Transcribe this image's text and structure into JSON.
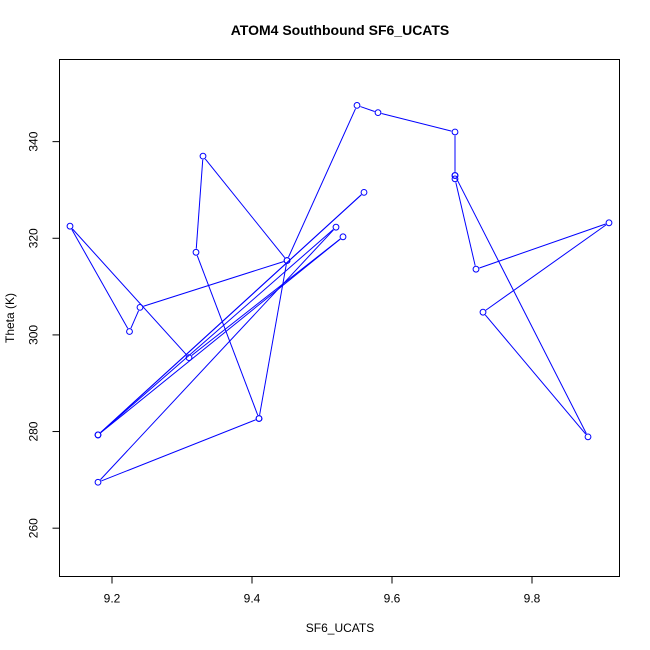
{
  "chart_data": {
    "type": "line",
    "title": "ATOM4 Southbound SF6_UCATS",
    "xlabel": "SF6_UCATS",
    "ylabel": "Theta (K)",
    "xlim": [
      9.125,
      9.925
    ],
    "ylim": [
      250,
      357
    ],
    "xticks": [
      {
        "value": 9.2,
        "label": "9.2"
      },
      {
        "value": 9.4,
        "label": "9.4"
      },
      {
        "value": 9.6,
        "label": "9.6"
      },
      {
        "value": 9.8,
        "label": "9.8"
      }
    ],
    "yticks": [
      {
        "value": 260,
        "label": "260"
      },
      {
        "value": 280,
        "label": "280"
      },
      {
        "value": 300,
        "label": "300"
      },
      {
        "value": 320,
        "label": "320"
      },
      {
        "value": 340,
        "label": "340"
      }
    ],
    "series": [
      {
        "color": "#0000ff",
        "marker": "open-circle",
        "points": [
          {
            "x": 9.41,
            "y": 282.7
          },
          {
            "x": 9.18,
            "y": 269.5
          },
          {
            "x": 9.52,
            "y": 322.3
          },
          {
            "x": 9.18,
            "y": 279.3
          },
          {
            "x": 9.56,
            "y": 329.5
          },
          {
            "x": 9.18,
            "y": 279.3
          },
          {
            "x": 9.53,
            "y": 320.3
          },
          {
            "x": 9.31,
            "y": 295.3
          },
          {
            "x": 9.14,
            "y": 322.5
          },
          {
            "x": 9.225,
            "y": 300.7
          },
          {
            "x": 9.24,
            "y": 305.7
          },
          {
            "x": 9.45,
            "y": 315.4
          },
          {
            "x": 9.33,
            "y": 337.0
          },
          {
            "x": 9.32,
            "y": 317.1
          },
          {
            "x": 9.41,
            "y": 282.7
          },
          {
            "x": 9.45,
            "y": 315.4
          },
          {
            "x": 9.55,
            "y": 347.5
          },
          {
            "x": 9.58,
            "y": 346.0
          },
          {
            "x": 9.69,
            "y": 342.0
          },
          {
            "x": 9.69,
            "y": 333.0
          },
          {
            "x": 9.69,
            "y": 332.3
          },
          {
            "x": 9.72,
            "y": 313.6
          },
          {
            "x": 9.91,
            "y": 323.2
          },
          {
            "x": 9.73,
            "y": 304.7
          },
          {
            "x": 9.88,
            "y": 278.9
          },
          {
            "x": 9.69,
            "y": 333.0
          }
        ]
      }
    ]
  }
}
